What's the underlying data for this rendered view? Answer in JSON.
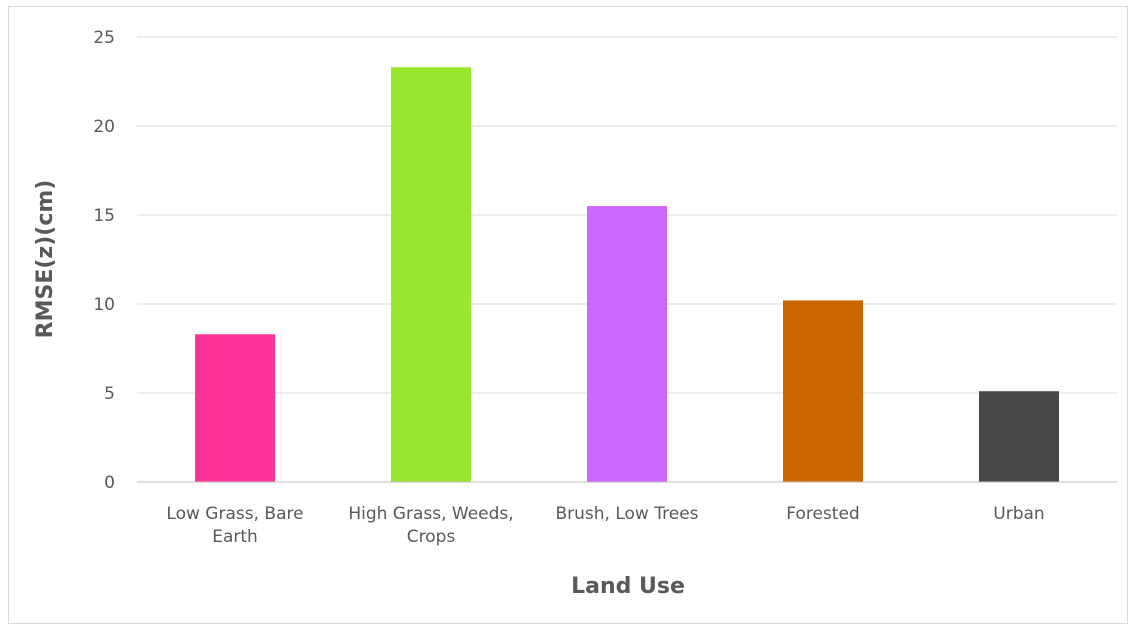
{
  "chart_data": {
    "type": "bar",
    "title": "",
    "xlabel": "Land Use",
    "ylabel": "RMSE(z)(cm)",
    "categories": [
      [
        "Low Grass, Bare",
        "Earth"
      ],
      [
        "High Grass, Weeds,",
        "Crops"
      ],
      [
        "Brush, Low Trees"
      ],
      [
        "Forested"
      ],
      [
        "Urban"
      ]
    ],
    "values": [
      8.3,
      23.3,
      15.5,
      10.2,
      5.1
    ],
    "colors": [
      "#ff3399",
      "#99e62e",
      "#cc66ff",
      "#cc6600",
      "#474747"
    ],
    "yticks": [
      "0",
      "5",
      "10",
      "15",
      "20",
      "25"
    ],
    "ylim": [
      0,
      25
    ],
    "grid": true,
    "legend": "none"
  }
}
